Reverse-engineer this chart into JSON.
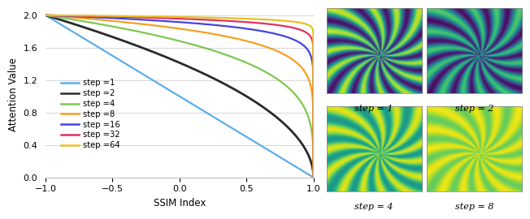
{
  "steps": [
    1,
    2,
    4,
    8,
    16,
    32,
    64
  ],
  "colors": [
    "#5baee8",
    "#2a2a2a",
    "#7dc850",
    "#f5a020",
    "#4444dd",
    "#e03060",
    "#e8c020"
  ],
  "linewidths": [
    1.6,
    2.0,
    1.6,
    1.6,
    1.6,
    1.6,
    1.6
  ],
  "xmin": -1.0,
  "xmax": 1.0,
  "ymin": 0.0,
  "ymax": 2.05,
  "xlabel": "SSIM Index",
  "ylabel": "Attention Value",
  "yticks": [
    0,
    0.4,
    0.8,
    1.2,
    1.6,
    2.0
  ],
  "xticks": [
    -1,
    -0.5,
    0,
    0.5,
    1
  ],
  "legend_labels": [
    "step =1",
    "step =2",
    "step =4",
    "step =8",
    "step =16",
    "step =32",
    "step =64"
  ],
  "img_labels": [
    "step = 1",
    "step = 2",
    "step = 4",
    "step = 8"
  ]
}
